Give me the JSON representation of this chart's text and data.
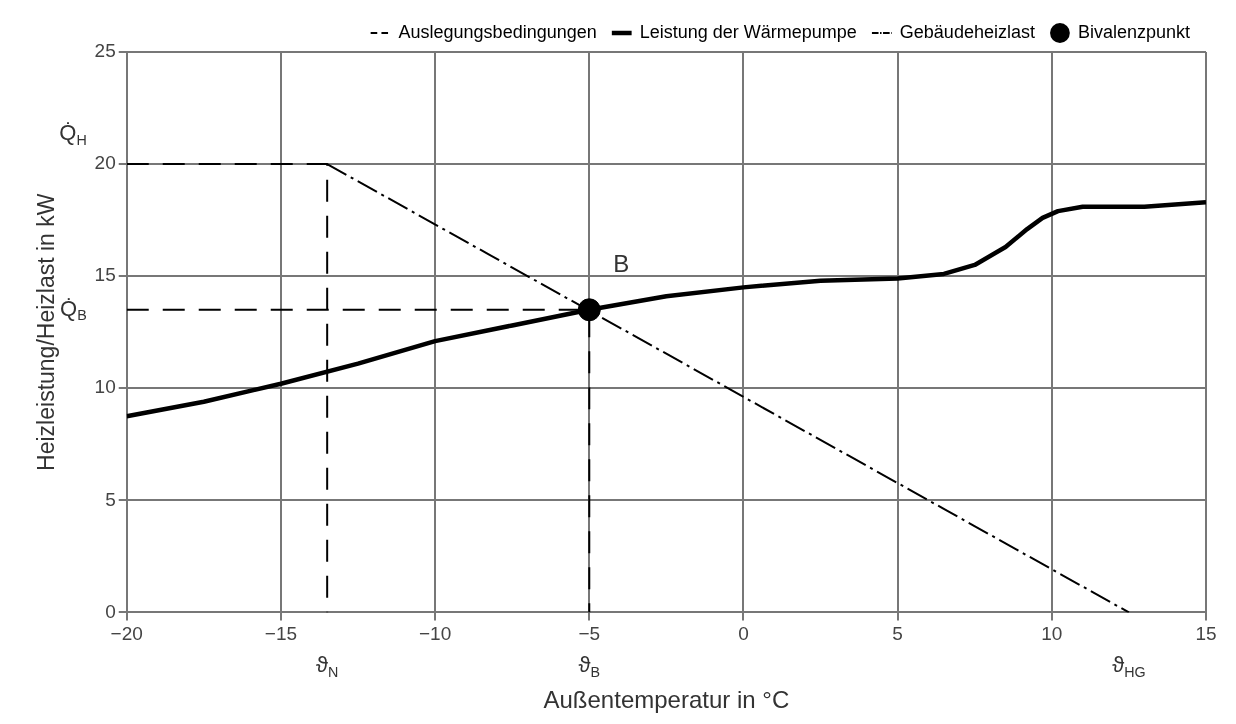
{
  "chart_data": {
    "type": "line",
    "xlabel": "Außentemperatur in °C",
    "ylabel": "Heizleistung/Heizlast in kW",
    "xlim": [
      -20,
      15
    ],
    "xticks": [
      -20,
      -15,
      -10,
      -5,
      0,
      5,
      10,
      15
    ],
    "ylim": [
      0,
      25
    ],
    "yticks": [
      0,
      5,
      10,
      15,
      20,
      25
    ],
    "grid": true,
    "legend": "top right",
    "series": [
      {
        "name": "Auslegungsbedingungen",
        "type": "line",
        "line_style": "dashed",
        "marker": "none",
        "color": "#000000",
        "x": [
          -20,
          -13.5,
          -13.5,
          null,
          -20,
          -5,
          -5,
          -5
        ],
        "values": [
          20,
          20,
          0,
          null,
          13.5,
          13.5,
          13.5,
          0
        ]
      },
      {
        "name": "Leistung der Wärmepumpe",
        "type": "line",
        "line_style": "solid",
        "marker": "none",
        "color": "#000000",
        "x": [
          -20,
          -17.5,
          -15,
          -12.5,
          -10,
          -7.5,
          -5,
          -2.5,
          0,
          2.5,
          5,
          6.5,
          7.5,
          8.5,
          9.2,
          9.7,
          10.2,
          11,
          13,
          15
        ],
        "values": [
          8.75,
          9.4,
          10.2,
          11.1,
          12.1,
          12.8,
          13.5,
          14.1,
          14.5,
          14.8,
          14.9,
          15.1,
          15.5,
          16.3,
          17.1,
          17.6,
          17.9,
          18.1,
          18.1,
          18.3
        ]
      },
      {
        "name": "Gebäudeheizlast",
        "type": "line",
        "line_style": "dashdot",
        "marker": "none",
        "color": "#000000",
        "x": [
          -13.5,
          12.5
        ],
        "values": [
          20,
          0
        ]
      },
      {
        "name": "Bivalenzpunkt",
        "type": "scatter",
        "marker": "circle",
        "color": "#000000",
        "x": [
          -5
        ],
        "values": [
          13.5
        ]
      }
    ],
    "annotations": [
      {
        "text": "B",
        "x": -5,
        "y": 13.5
      },
      {
        "text": "Q̇$_{H}$",
        "x": -20,
        "y": 20
      },
      {
        "text": "Q̇$_{B}$",
        "x": -20,
        "y": 13.5
      },
      {
        "text": "ϑ$_{N}$",
        "x": -13.5,
        "y": 0
      },
      {
        "text": "ϑ$_{B}$",
        "x": -5,
        "y": 0
      },
      {
        "text": "ϑ$_{HG}$",
        "x": 12.5,
        "y": 0
      }
    ]
  }
}
